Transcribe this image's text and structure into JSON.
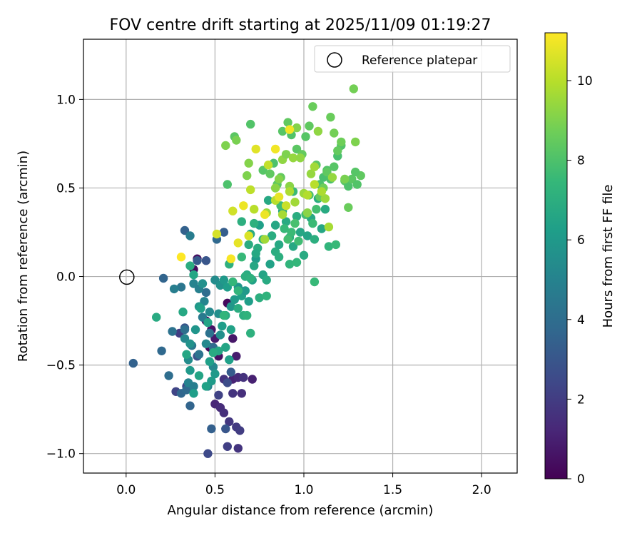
{
  "chart_data": {
    "type": "scatter",
    "title": "FOV centre drift starting at 2025/11/09 01:19:27",
    "xlabel": "Angular distance from reference (arcmin)",
    "ylabel": "Rotation from reference (arcmin)",
    "xlim": [
      -0.24,
      2.2
    ],
    "ylim": [
      -1.11,
      1.34
    ],
    "xticks": [
      0.0,
      0.5,
      1.0,
      1.5,
      2.0
    ],
    "xtick_labels": [
      "0.0",
      "0.5",
      "1.0",
      "1.5",
      "2.0"
    ],
    "yticks": [
      -1.0,
      -0.5,
      0.0,
      0.5,
      1.0
    ],
    "ytick_labels": [
      "−1.0",
      "−0.5",
      "0.0",
      "0.5",
      "1.0"
    ],
    "grid": true,
    "legend": {
      "position": "top-right",
      "entries": [
        "Reference platepar"
      ]
    },
    "reference_point": {
      "x": 0.0,
      "y": 0.0,
      "label": "Reference platepar"
    },
    "colorbar": {
      "label": "Hours from first FF file",
      "range": [
        0,
        11.2
      ],
      "ticks": [
        0,
        2,
        4,
        6,
        8,
        10
      ],
      "tick_labels": [
        "0",
        "2",
        "4",
        "6",
        "8",
        "10"
      ],
      "colormap": [
        "#440154",
        "#482878",
        "#3e4a89",
        "#31688e",
        "#26828e",
        "#1f9e89",
        "#35b779",
        "#6ece58",
        "#b5de2b",
        "#fde725"
      ]
    },
    "points": [
      [
        0.38,
        0.04,
        0.3
      ],
      [
        0.4,
        0.1,
        0.5
      ],
      [
        0.45,
        -0.25,
        0.4
      ],
      [
        0.47,
        -0.4,
        0.2
      ],
      [
        0.48,
        -0.3,
        0.6
      ],
      [
        0.5,
        -0.35,
        0.8
      ],
      [
        0.52,
        -0.45,
        0.5
      ],
      [
        0.57,
        -0.15,
        0.3
      ],
      [
        0.6,
        -0.35,
        0.7
      ],
      [
        0.62,
        -0.45,
        0.9
      ],
      [
        0.5,
        -0.72,
        1.2
      ],
      [
        0.53,
        -0.74,
        1.4
      ],
      [
        0.55,
        -0.77,
        1.5
      ],
      [
        0.58,
        -0.82,
        1.8
      ],
      [
        0.62,
        -0.85,
        1.9
      ],
      [
        0.64,
        -0.87,
        2.0
      ],
      [
        0.63,
        -0.97,
        1.7
      ],
      [
        0.57,
        -0.96,
        2.1
      ],
      [
        0.6,
        -0.58,
        1.1
      ],
      [
        0.63,
        -0.57,
        1.3
      ],
      [
        0.66,
        -0.57,
        1.6
      ],
      [
        0.71,
        -0.58,
        1.0
      ],
      [
        0.55,
        -0.58,
        1.6
      ],
      [
        0.52,
        -0.67,
        2.2
      ],
      [
        0.6,
        -0.66,
        1.7
      ],
      [
        0.65,
        -0.66,
        1.5
      ],
      [
        0.34,
        -0.62,
        2.4
      ],
      [
        0.28,
        -0.65,
        2.3
      ],
      [
        0.46,
        -1.0,
        2.5
      ],
      [
        0.57,
        -0.6,
        2.6
      ],
      [
        0.4,
        -0.45,
        2.8
      ],
      [
        0.33,
        -0.29,
        3.0
      ],
      [
        0.3,
        -0.32,
        2.0
      ],
      [
        0.59,
        -0.54,
        3.2
      ],
      [
        0.04,
        -0.49,
        3.5
      ],
      [
        0.56,
        -0.86,
        3.0
      ],
      [
        0.48,
        -0.86,
        3.4
      ],
      [
        0.36,
        -0.73,
        3.6
      ],
      [
        0.31,
        -0.66,
        3.7
      ],
      [
        0.34,
        -0.64,
        3.9
      ],
      [
        0.2,
        -0.42,
        3.8
      ],
      [
        0.21,
        -0.01,
        3.6
      ],
      [
        0.33,
        0.26,
        3.5
      ],
      [
        0.4,
        0.09,
        3.2
      ],
      [
        0.45,
        0.09,
        3.0
      ],
      [
        0.51,
        0.21,
        3.8
      ],
      [
        0.55,
        0.25,
        3.3
      ],
      [
        0.26,
        -0.31,
        4.2
      ],
      [
        0.31,
        -0.06,
        4.4
      ],
      [
        0.33,
        -0.3,
        4.1
      ],
      [
        0.37,
        -0.39,
        4.5
      ],
      [
        0.41,
        -0.44,
        4.3
      ],
      [
        0.43,
        -0.23,
        4.6
      ],
      [
        0.45,
        -0.09,
        4.0
      ],
      [
        0.47,
        -0.32,
        4.2
      ],
      [
        0.49,
        -0.4,
        3.9
      ],
      [
        0.27,
        -0.07,
        4.8
      ],
      [
        0.36,
        0.23,
        4.7
      ],
      [
        0.38,
        -0.04,
        5.0
      ],
      [
        0.41,
        -0.07,
        4.9
      ],
      [
        0.44,
        -0.14,
        5.1
      ],
      [
        0.24,
        -0.56,
        4.0
      ],
      [
        0.35,
        -0.6,
        5.0
      ],
      [
        0.33,
        -0.35,
        5.2
      ],
      [
        0.35,
        -0.47,
        5.4
      ],
      [
        0.38,
        -0.62,
        4.8
      ],
      [
        0.45,
        -0.38,
        5.3
      ],
      [
        0.46,
        -0.62,
        5.0
      ],
      [
        0.49,
        -0.51,
        5.2
      ],
      [
        0.52,
        -0.21,
        5.5
      ],
      [
        0.53,
        -0.33,
        5.6
      ],
      [
        0.36,
        -0.38,
        5.7
      ],
      [
        0.39,
        -0.3,
        5.8
      ],
      [
        0.41,
        -0.17,
        5.9
      ],
      [
        0.43,
        -0.04,
        5.6
      ],
      [
        0.47,
        -0.2,
        5.3
      ],
      [
        0.5,
        -0.02,
        5.4
      ],
      [
        0.53,
        -0.05,
        5.7
      ],
      [
        0.55,
        -0.02,
        6.0
      ],
      [
        0.57,
        -0.06,
        6.2
      ],
      [
        0.59,
        -0.17,
        5.9
      ],
      [
        0.61,
        -0.13,
        6.1
      ],
      [
        0.63,
        -0.06,
        5.8
      ],
      [
        0.65,
        -0.11,
        6.3
      ],
      [
        0.67,
        -0.08,
        6.0
      ],
      [
        0.69,
        -0.14,
        6.2
      ],
      [
        0.71,
        -0.02,
        6.4
      ],
      [
        0.73,
        0.1,
        6.1
      ],
      [
        0.58,
        -0.47,
        6.3
      ],
      [
        0.56,
        -0.4,
        6.5
      ],
      [
        0.54,
        -0.28,
        6.2
      ],
      [
        0.52,
        -0.42,
        6.6
      ],
      [
        0.5,
        -0.55,
        6.0
      ],
      [
        0.48,
        -0.59,
        6.1
      ],
      [
        0.47,
        -0.48,
        6.3
      ],
      [
        0.45,
        -0.62,
        6.4
      ],
      [
        0.41,
        -0.56,
        6.5
      ],
      [
        0.38,
        -0.66,
        6.2
      ],
      [
        0.36,
        -0.53,
        6.0
      ],
      [
        0.34,
        -0.44,
        6.6
      ],
      [
        0.32,
        -0.2,
        6.7
      ],
      [
        0.17,
        -0.23,
        6.8
      ],
      [
        0.36,
        0.06,
        6.9
      ],
      [
        0.38,
        0.01,
        6.6
      ],
      [
        0.42,
        -0.18,
        6.3
      ],
      [
        0.46,
        -0.26,
        6.5
      ],
      [
        0.49,
        -0.43,
        6.8
      ],
      [
        0.56,
        -0.22,
        6.7
      ],
      [
        0.59,
        -0.3,
        6.4
      ],
      [
        0.63,
        -0.18,
        6.9
      ],
      [
        0.66,
        -0.22,
        7.0
      ],
      [
        0.7,
        -0.32,
        7.1
      ],
      [
        0.68,
        0.01,
        6.8
      ],
      [
        0.72,
        0.06,
        6.6
      ],
      [
        0.74,
        0.16,
        6.9
      ],
      [
        0.75,
        0.29,
        6.3
      ],
      [
        0.77,
        0.01,
        6.5
      ],
      [
        0.79,
        -0.02,
        6.8
      ],
      [
        0.81,
        0.07,
        6.4
      ],
      [
        0.82,
        0.23,
        6.9
      ],
      [
        0.84,
        0.29,
        6.6
      ],
      [
        0.86,
        0.18,
        6.7
      ],
      [
        0.88,
        0.37,
        6.5
      ],
      [
        0.9,
        0.31,
        6.8
      ],
      [
        0.92,
        0.22,
        7.0
      ],
      [
        0.94,
        0.17,
        6.7
      ],
      [
        0.96,
        0.34,
        6.9
      ],
      [
        0.98,
        0.25,
        6.6
      ],
      [
        1.0,
        0.12,
        6.8
      ],
      [
        1.02,
        0.23,
        6.5
      ],
      [
        1.04,
        0.33,
        6.7
      ],
      [
        1.06,
        0.21,
        7.0
      ],
      [
        1.08,
        0.44,
        6.9
      ],
      [
        1.1,
        0.27,
        6.6
      ],
      [
        1.12,
        0.38,
        6.8
      ],
      [
        0.8,
        0.43,
        6.7
      ],
      [
        0.84,
        0.14,
        6.9
      ],
      [
        0.86,
        0.11,
        7.0
      ],
      [
        0.7,
        0.24,
        6.8
      ],
      [
        0.72,
        0.3,
        7.1
      ],
      [
        0.77,
        0.21,
        7.2
      ],
      [
        0.65,
        0.31,
        7.0
      ],
      [
        0.69,
        0.18,
        6.9
      ],
      [
        0.73,
        0.13,
        6.7
      ],
      [
        0.67,
        0.0,
        7.0
      ],
      [
        0.7,
        -0.01,
        7.1
      ],
      [
        0.68,
        -0.22,
        7.2
      ],
      [
        0.75,
        -0.12,
        7.0
      ],
      [
        0.79,
        -0.11,
        7.2
      ],
      [
        0.58,
        0.07,
        7.1
      ],
      [
        0.55,
        -0.22,
        7.3
      ],
      [
        0.6,
        -0.03,
        7.4
      ],
      [
        0.63,
        -0.08,
        7.3
      ],
      [
        0.65,
        0.11,
        7.5
      ],
      [
        0.92,
        0.07,
        7.3
      ],
      [
        0.96,
        0.08,
        7.4
      ],
      [
        1.06,
        -0.03,
        7.5
      ],
      [
        1.14,
        0.17,
        7.3
      ],
      [
        1.18,
        0.18,
        7.5
      ],
      [
        0.94,
        0.48,
        7.6
      ],
      [
        0.87,
        0.4,
        7.7
      ],
      [
        0.89,
        0.27,
        7.5
      ],
      [
        0.91,
        0.21,
        7.8
      ],
      [
        0.93,
        0.25,
        7.6
      ],
      [
        0.95,
        0.3,
        7.9
      ],
      [
        0.97,
        0.2,
        7.7
      ],
      [
        1.01,
        0.35,
        7.8
      ],
      [
        1.03,
        0.46,
        7.9
      ],
      [
        1.05,
        0.3,
        7.6
      ],
      [
        1.07,
        0.38,
        7.8
      ],
      [
        1.09,
        0.52,
        8.0
      ],
      [
        1.11,
        0.56,
        7.9
      ],
      [
        1.13,
        0.6,
        8.1
      ],
      [
        1.15,
        0.55,
        8.0
      ],
      [
        1.17,
        0.62,
        8.2
      ],
      [
        1.19,
        0.68,
        7.9
      ],
      [
        1.21,
        0.74,
        8.1
      ],
      [
        1.23,
        0.54,
        8.2
      ],
      [
        1.25,
        0.51,
        8.0
      ],
      [
        1.27,
        0.55,
        8.3
      ],
      [
        1.3,
        0.52,
        8.1
      ],
      [
        1.32,
        0.57,
        8.4
      ],
      [
        1.29,
        0.59,
        8.2
      ],
      [
        0.57,
        0.52,
        8.0
      ],
      [
        0.61,
        0.79,
        8.3
      ],
      [
        0.7,
        0.86,
        8.1
      ],
      [
        0.77,
        0.6,
        8.2
      ],
      [
        0.81,
        0.58,
        8.4
      ],
      [
        0.83,
        0.64,
        8.0
      ],
      [
        0.85,
        0.52,
        8.3
      ],
      [
        0.87,
        0.56,
        8.5
      ],
      [
        0.88,
        0.82,
        8.2
      ],
      [
        0.91,
        0.87,
        8.4
      ],
      [
        0.93,
        0.8,
        8.1
      ],
      [
        0.96,
        0.72,
        8.3
      ],
      [
        0.99,
        0.69,
        8.5
      ],
      [
        1.01,
        0.79,
        8.2
      ],
      [
        1.03,
        0.85,
        8.4
      ],
      [
        1.05,
        0.96,
        8.6
      ],
      [
        1.07,
        0.63,
        8.3
      ],
      [
        1.09,
        0.45,
        8.5
      ],
      [
        1.11,
        0.5,
        8.7
      ],
      [
        1.13,
        0.59,
        8.4
      ],
      [
        1.15,
        0.9,
        8.6
      ],
      [
        1.17,
        0.81,
        8.8
      ],
      [
        1.19,
        0.71,
        8.5
      ],
      [
        1.21,
        0.76,
        8.7
      ],
      [
        1.23,
        0.55,
        8.9
      ],
      [
        1.25,
        0.39,
        8.6
      ],
      [
        1.28,
        1.06,
        8.8
      ],
      [
        1.29,
        0.76,
        9.0
      ],
      [
        0.56,
        0.74,
        9.0
      ],
      [
        0.62,
        0.77,
        8.9
      ],
      [
        0.69,
        0.64,
        9.1
      ],
      [
        0.68,
        0.57,
        9.0
      ],
      [
        0.84,
        0.5,
        9.2
      ],
      [
        0.86,
        0.55,
        9.1
      ],
      [
        0.88,
        0.66,
        9.3
      ],
      [
        0.9,
        0.69,
        9.0
      ],
      [
        0.92,
        0.51,
        9.2
      ],
      [
        0.94,
        0.67,
        9.4
      ],
      [
        0.96,
        0.84,
        9.1
      ],
      [
        0.98,
        0.67,
        9.3
      ],
      [
        1.0,
        0.47,
        9.5
      ],
      [
        1.02,
        0.36,
        9.2
      ],
      [
        1.04,
        0.58,
        9.4
      ],
      [
        1.06,
        0.62,
        9.6
      ],
      [
        1.08,
        0.82,
        9.3
      ],
      [
        1.12,
        0.44,
        9.5
      ],
      [
        1.14,
        0.28,
        9.7
      ],
      [
        1.16,
        0.56,
        9.4
      ],
      [
        0.78,
        0.21,
        9.6
      ],
      [
        0.79,
        0.36,
        9.5
      ],
      [
        0.88,
        0.35,
        9.7
      ],
      [
        0.92,
        0.48,
        9.8
      ],
      [
        0.95,
        0.42,
        9.6
      ],
      [
        1.02,
        0.46,
        9.9
      ],
      [
        1.06,
        0.52,
        10.0
      ],
      [
        1.1,
        0.48,
        9.8
      ],
      [
        0.7,
        0.49,
        10.1
      ],
      [
        0.72,
        0.38,
        10.0
      ],
      [
        0.8,
        0.63,
        10.2
      ],
      [
        0.84,
        0.43,
        10.0
      ],
      [
        0.9,
        0.4,
        10.3
      ],
      [
        0.51,
        0.24,
        10.5
      ],
      [
        0.6,
        0.37,
        10.4
      ],
      [
        0.69,
        0.23,
        10.6
      ],
      [
        0.63,
        0.19,
        10.8
      ],
      [
        0.66,
        0.4,
        10.9
      ],
      [
        0.73,
        0.72,
        10.7
      ],
      [
        0.86,
        0.45,
        10.8
      ],
      [
        0.92,
        0.83,
        11.0
      ],
      [
        0.59,
        0.1,
        11.1
      ],
      [
        0.31,
        0.11,
        11.2
      ],
      [
        0.78,
        0.35,
        10.9
      ],
      [
        0.84,
        0.72,
        11.0
      ]
    ]
  }
}
